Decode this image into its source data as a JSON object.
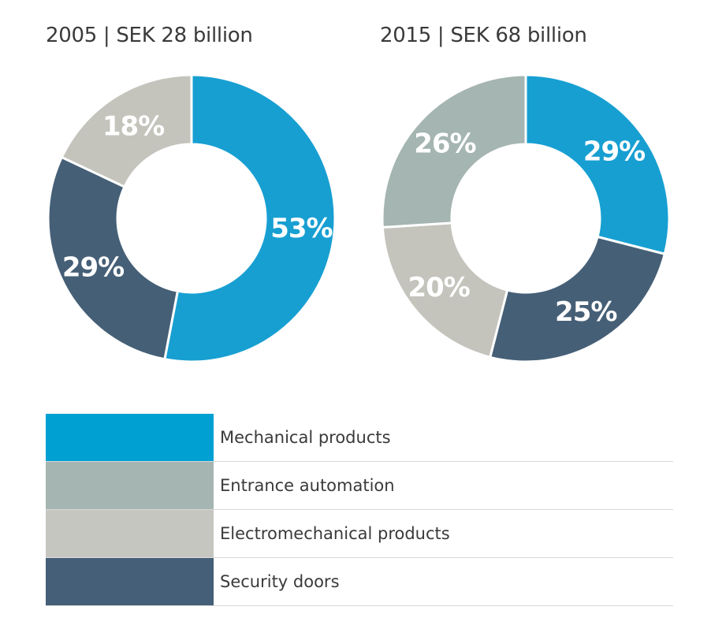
{
  "chart_data": [
    {
      "type": "pie",
      "title": "2005 | SEK 28 billion",
      "slices": [
        {
          "category": "Mechanical products",
          "value": 53,
          "label": "53%",
          "color": "#179fd2"
        },
        {
          "category": "Security doors",
          "value": 29,
          "label": "29%",
          "color": "#455f76"
        },
        {
          "category": "Electromechanical products",
          "value": 18,
          "label": "18%",
          "color": "#c4c4bd"
        }
      ]
    },
    {
      "type": "pie",
      "title": "2015 | SEK 68 billion",
      "slices": [
        {
          "category": "Mechanical products",
          "value": 29,
          "label": "29%",
          "color": "#179fd2"
        },
        {
          "category": "Security doors",
          "value": 25,
          "label": "25%",
          "color": "#455f76"
        },
        {
          "category": "Electromechanical products",
          "value": 20,
          "label": "20%",
          "color": "#c4c4bd"
        },
        {
          "category": "Entrance automation",
          "value": 26,
          "label": "26%",
          "color": "#a5b5b1"
        }
      ]
    }
  ],
  "legend": [
    {
      "label": "Mechanical products",
      "color": "#00a0d2"
    },
    {
      "label": "Entrance automation",
      "color": "#a5b5b1"
    },
    {
      "label": "Electromechanical products",
      "color": "#c6c6c0"
    },
    {
      "label": "Security doors",
      "color": "#445f77"
    }
  ]
}
